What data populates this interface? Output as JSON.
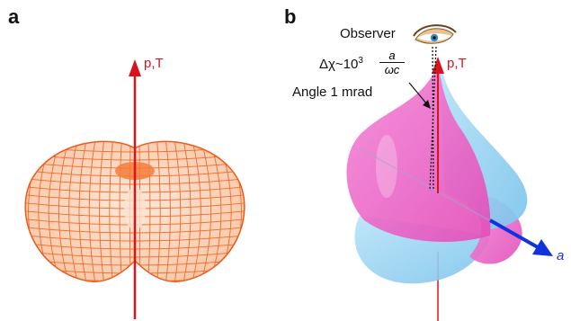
{
  "panels": {
    "a": {
      "label": "a",
      "axis_label": "p,T"
    },
    "b": {
      "label": "b",
      "axis_label": "p,T",
      "direction_label": "a",
      "observer_label": "Observer",
      "delta_prefix": "Δχ~10",
      "delta_exponent": "3",
      "frac_numerator": "a",
      "frac_denominator": "ωc",
      "angle_label": "Angle 1 mrad"
    }
  },
  "colors": {
    "axis_red": "#d8141c",
    "mesh_orange": "#f2692a",
    "mesh_fill": "#fbd6bf",
    "lobe_pink": "#f067c8",
    "lobe_blue": "#8fd0f2",
    "arrow_blue": "#1133dd"
  },
  "icons": {
    "observer": "eye-icon"
  }
}
